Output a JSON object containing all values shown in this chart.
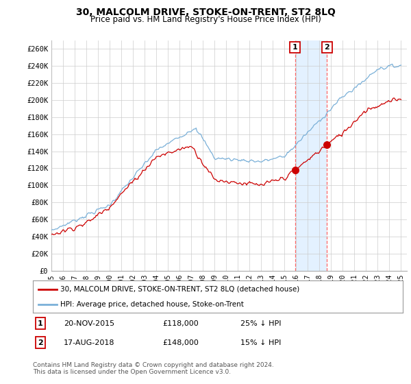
{
  "title": "30, MALCOLM DRIVE, STOKE-ON-TRENT, ST2 8LQ",
  "subtitle": "Price paid vs. HM Land Registry's House Price Index (HPI)",
  "title_fontsize": 10,
  "subtitle_fontsize": 8.5,
  "ylabel_ticks": [
    "£0",
    "£20K",
    "£40K",
    "£60K",
    "£80K",
    "£100K",
    "£120K",
    "£140K",
    "£160K",
    "£180K",
    "£200K",
    "£220K",
    "£240K",
    "£260K"
  ],
  "ytick_values": [
    0,
    20000,
    40000,
    60000,
    80000,
    100000,
    120000,
    140000,
    160000,
    180000,
    200000,
    220000,
    240000,
    260000
  ],
  "ylim": [
    0,
    270000
  ],
  "xlim_start": 1995.0,
  "xlim_end": 2025.5,
  "xtick_years": [
    1995,
    1996,
    1997,
    1998,
    1999,
    2000,
    2001,
    2002,
    2003,
    2004,
    2005,
    2006,
    2007,
    2008,
    2009,
    2010,
    2011,
    2012,
    2013,
    2014,
    2015,
    2016,
    2017,
    2018,
    2019,
    2020,
    2021,
    2022,
    2023,
    2024,
    2025
  ],
  "hpi_color": "#7ab0d8",
  "price_color": "#cc0000",
  "shade_color": "#ddeeff",
  "vline_color": "#ff6666",
  "point1_x": 2015.9,
  "point1_y": 118000,
  "point2_x": 2018.65,
  "point2_y": 148000,
  "vline1_x": 2015.9,
  "vline2_x": 2018.65,
  "shade_x1": 2015.9,
  "shade_x2": 2018.65,
  "legend_line1_label": "30, MALCOLM DRIVE, STOKE-ON-TRENT, ST2 8LQ (detached house)",
  "legend_line2_label": "HPI: Average price, detached house, Stoke-on-Trent",
  "annot1_num": "1",
  "annot2_num": "2",
  "annot1_date": "20-NOV-2015",
  "annot1_price": "£118,000",
  "annot1_hpi": "25% ↓ HPI",
  "annot2_date": "17-AUG-2018",
  "annot2_price": "£148,000",
  "annot2_hpi": "15% ↓ HPI",
  "footer": "Contains HM Land Registry data © Crown copyright and database right 2024.\nThis data is licensed under the Open Government Licence v3.0.",
  "background_color": "#ffffff",
  "grid_color": "#cccccc"
}
